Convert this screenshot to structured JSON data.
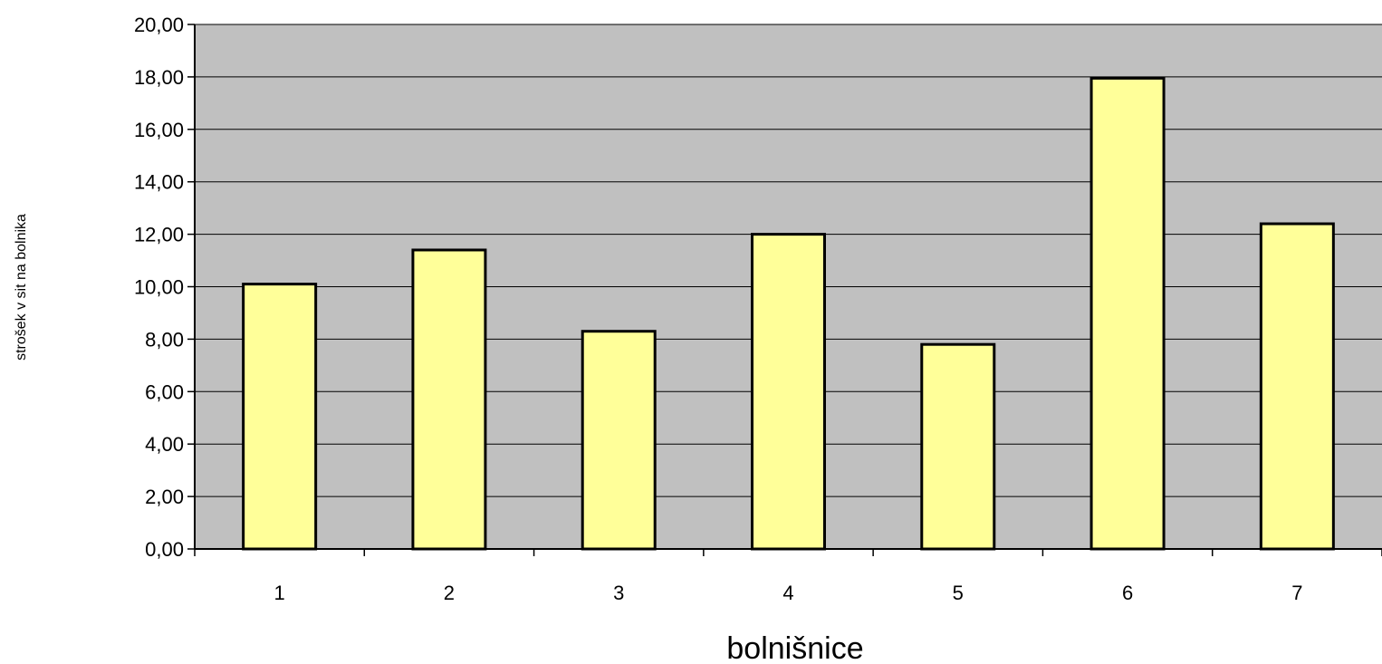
{
  "chart_data": {
    "type": "bar",
    "title": "",
    "xlabel": "bolnišnice",
    "ylabel": "strošek v sit na bolnika",
    "categories": [
      "1",
      "2",
      "3",
      "4",
      "5",
      "6",
      "7"
    ],
    "values": [
      10.1,
      11.4,
      8.3,
      12.0,
      7.8,
      17.95,
      12.4
    ],
    "ylim": [
      0,
      20
    ],
    "yticks": [
      "0,00",
      "2,00",
      "4,00",
      "6,00",
      "8,00",
      "10,00",
      "12,00",
      "14,00",
      "16,00",
      "18,00",
      "20,00"
    ],
    "ytick_values": [
      0,
      2,
      4,
      6,
      8,
      10,
      12,
      14,
      16,
      18,
      20
    ],
    "grid": true,
    "legend": "none",
    "colors": {
      "plot_background": "#c0c0c0",
      "bar_fill": "#ffff99",
      "bar_stroke": "#000000",
      "grid": "#000000"
    }
  }
}
